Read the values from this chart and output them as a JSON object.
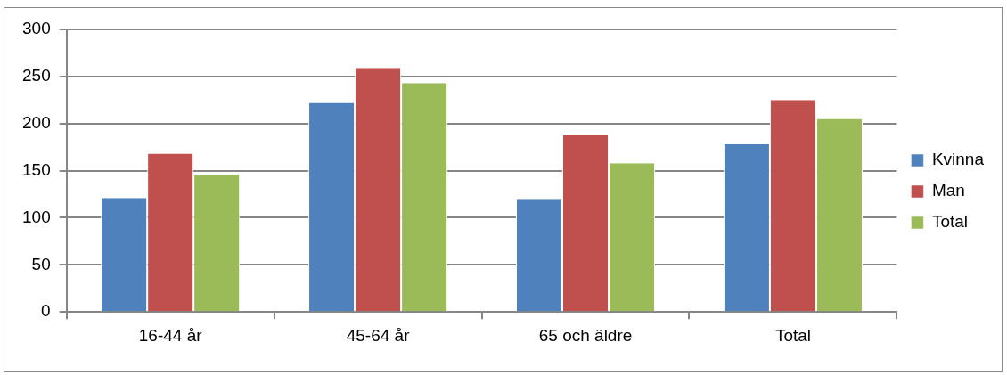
{
  "chart_data": {
    "type": "bar",
    "categories": [
      "16-44 år",
      "45-64 år",
      "65 och äldre",
      "Total"
    ],
    "series": [
      {
        "name": "Kvinna",
        "color": "#4f81bd",
        "values": [
          121,
          222,
          120,
          178
        ]
      },
      {
        "name": "Man",
        "color": "#c0504d",
        "values": [
          168,
          259,
          188,
          225
        ]
      },
      {
        "name": "Total",
        "color": "#9bbb59",
        "values": [
          146,
          243,
          158,
          205
        ]
      }
    ],
    "ylim": [
      0,
      300
    ],
    "yticks": [
      0,
      50,
      100,
      150,
      200,
      250,
      300
    ],
    "grid": "y",
    "legend": "right"
  }
}
